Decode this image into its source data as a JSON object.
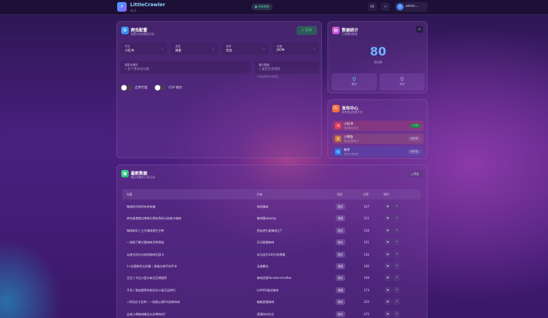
{
  "header": {
    "brand": "LittleCrawler",
    "version": "v1.0",
    "status": "系统就绪",
    "lang_button": "EN",
    "theme_button": "☼",
    "user": {
      "initial": "A",
      "name": "admin"
    }
  },
  "config": {
    "title": "爬虫配置",
    "subtitle": "配置并启动爬虫任务",
    "start_label": "启动",
    "fields": [
      {
        "label": "平台",
        "value": "小红书"
      },
      {
        "label": "类型",
        "value": "搜索"
      },
      {
        "label": "排序",
        "value": "综合"
      },
      {
        "label": "存储",
        "value": "JSON"
      }
    ],
    "keywords": {
      "label": "搜索关键词",
      "placeholder": "多个用逗号分隔"
    },
    "max": {
      "label": "最大数量",
      "placeholder": "留空为无限制",
      "hint": "不填则抓取所有数量"
    },
    "toggles": [
      {
        "label": "启用代理",
        "on": false
      },
      {
        "label": "CDP 模式",
        "on": false
      }
    ]
  },
  "stats": {
    "title": "数据统计",
    "subtitle": "已采集的数据",
    "total": "80",
    "total_label": "总记录",
    "notes": "0",
    "notes_label": "笔记",
    "comments": "0",
    "comments_label": "评论",
    "accent": "#6db4ff"
  },
  "publish": {
    "title": "发布中心",
    "subtitle": "发布笔记到各平台",
    "items": [
      {
        "name": "小红书",
        "desc": "发布图文笔记",
        "badge": "可用",
        "color": "#e8405a"
      },
      {
        "name": "小黄鱼",
        "desc": "发布闲置笔记",
        "badge": "待开发",
        "color": "#e88a3a"
      },
      {
        "name": "知乎",
        "desc": "发布文章内容",
        "badge": "待开发",
        "color": "#2f7ff0"
      }
    ]
  },
  "latest": {
    "title": "最新数据",
    "subtitle": "最近采集的10条记录",
    "export_label": "导出",
    "columns": [
      "标题",
      "作者",
      "类型",
      "点赞",
      "操作"
    ],
    "rows": [
      {
        "title": "咖啡的冷知识有多有趣",
        "author": "知啦渥咏",
        "type": "图文",
        "likes": "117"
      },
      {
        "title": "转在香港铁比喝排行榜吃系的元的夜卡咖啡",
        "author": "咖啡窝whacky",
        "type": "视频",
        "likes": "111"
      },
      {
        "title": "咖啡知识 | 三大咖啡原生豆种",
        "author": "西安逆行者咖啡工厂",
        "type": "图文",
        "likes": "110"
      },
      {
        "title": "一张图了解主要咖啡豆种家族",
        "author": "乐沂甜蜜咖啡",
        "type": "图文",
        "likes": "121"
      },
      {
        "title": "云南豆好比水机续咖啡豆度卡",
        "author": "半日成为100万的黄婆",
        "type": "图文",
        "likes": "132"
      },
      {
        "title": "1+这套粉色太好看｜很难分辨手的手冲",
        "author": "汤香繁衣",
        "type": "视频",
        "likes": "145"
      },
      {
        "title": "豆豆 | 今日小篮水来豆豆周推荐",
        "author": "咖啡泥痕TerraformCoffee",
        "type": "图文",
        "likes": "159"
      },
      {
        "title": "干货 | 耶加雪菲的科拉比十面豆品种们",
        "author": "LUMOS道光咖啡",
        "type": "视频",
        "likes": "173"
      },
      {
        "title": "☕阿拉比卡豆种｜一张图认清6大经典风味",
        "author": "魁魁宽雅咖啡",
        "type": "图文",
        "likes": "225"
      },
      {
        "title": "云南人喝咖啡都这么好喝的吗?",
        "author": "漠漠的叶先生",
        "type": "图文",
        "likes": "275"
      }
    ]
  }
}
